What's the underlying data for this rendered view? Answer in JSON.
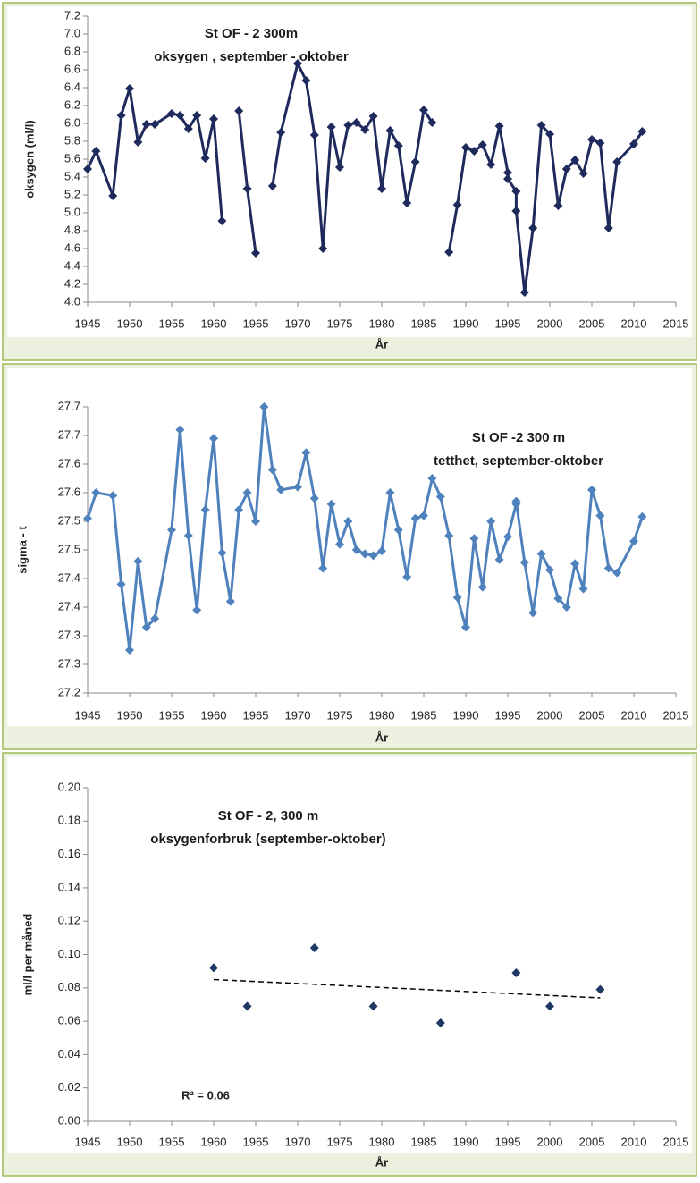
{
  "chart_data": [
    {
      "type": "line",
      "title": "St OF - 2  300m",
      "subtitle": "oksygen , september - oktober",
      "x_label": "År",
      "y_label": "oksygen (ml/l)",
      "color": "#1f2a5c",
      "x": [
        1945,
        1946,
        1948,
        1949,
        1950,
        1951,
        1952,
        1953,
        1955,
        1956,
        1957,
        1958,
        1959,
        1960,
        1961,
        1962,
        1963,
        1964,
        1965,
        1966,
        1967,
        1968,
        1970,
        1971,
        1972,
        1973,
        1974,
        1975,
        1976,
        1977,
        1978,
        1979,
        1980,
        1981,
        1982,
        1983,
        1984,
        1985,
        1986,
        1987,
        1988,
        1989,
        1990,
        1991,
        1992,
        1993,
        1994,
        1995,
        1995,
        1996,
        1996,
        1997,
        1998,
        1999,
        2000,
        2001,
        2002,
        2003,
        2004,
        2005,
        2006,
        2007,
        2008,
        2010,
        2011
      ],
      "values": [
        5.49,
        5.69,
        5.19,
        6.09,
        6.39,
        5.79,
        5.99,
        5.99,
        6.11,
        6.09,
        5.94,
        6.09,
        5.61,
        6.05,
        4.91,
        null,
        6.14,
        5.27,
        4.55,
        null,
        5.3,
        5.9,
        6.67,
        6.48,
        5.87,
        4.6,
        5.96,
        5.51,
        5.98,
        6.01,
        5.93,
        6.08,
        5.27,
        5.92,
        5.75,
        5.11,
        5.57,
        6.15,
        6.01,
        null,
        4.56,
        5.09,
        5.73,
        5.69,
        5.76,
        5.54,
        5.97,
        5.45,
        5.38,
        5.24,
        5.02,
        4.11,
        4.83,
        5.98,
        5.88,
        5.08,
        5.49,
        5.59,
        5.44,
        5.82,
        5.78,
        4.83,
        5.57,
        5.77,
        5.91
      ],
      "xlim": [
        1945,
        2015
      ],
      "xticks": [
        1945,
        1950,
        1955,
        1960,
        1965,
        1970,
        1975,
        1980,
        1985,
        1990,
        1995,
        2000,
        2005,
        2010,
        2015
      ],
      "ylim": [
        4.0,
        7.2
      ],
      "yticks": [
        {
          "value": 4,
          "label": "4.0"
        },
        4.2,
        4.4,
        4.6,
        4.8,
        {
          "value": 5,
          "label": "5.0"
        },
        5.2,
        5.4,
        5.6,
        5.8,
        {
          "value": 6,
          "label": "6.0"
        },
        6.2,
        6.4,
        6.6,
        6.8,
        {
          "value": 7,
          "label": "7.0"
        },
        7.2
      ]
    },
    {
      "type": "line",
      "title": "St OF -2  300 m",
      "subtitle": "tetthet, september-oktober",
      "x_label": "År",
      "y_label": "sigma - t",
      "color": "#4f81bd",
      "x": [
        1945,
        1946,
        1948,
        1949,
        1950,
        1951,
        1952,
        1953,
        1955,
        1956,
        1957,
        1958,
        1959,
        1960,
        1961,
        1962,
        1963,
        1964,
        1965,
        1966,
        1967,
        1968,
        1970,
        1971,
        1972,
        1973,
        1974,
        1975,
        1976,
        1977,
        1978,
        1979,
        1980,
        1981,
        1982,
        1983,
        1984,
        1985,
        1986,
        1987,
        1988,
        1989,
        1990,
        1991,
        1992,
        1993,
        1994,
        1995,
        1996,
        1996,
        1997,
        1998,
        1999,
        2000,
        2001,
        2002,
        2003,
        2004,
        2005,
        2006,
        2007,
        2008,
        2010,
        2011
      ],
      "values": [
        27.505,
        27.55,
        27.545,
        27.39,
        27.275,
        27.43,
        27.315,
        27.33,
        27.485,
        27.66,
        27.475,
        27.345,
        27.52,
        27.645,
        27.445,
        27.36,
        27.52,
        27.55,
        27.5,
        27.7,
        27.59,
        27.555,
        27.56,
        27.62,
        27.54,
        27.418,
        27.53,
        27.46,
        27.5,
        27.45,
        27.443,
        27.44,
        27.448,
        27.55,
        27.485,
        27.403,
        27.505,
        27.51,
        27.575,
        27.543,
        27.475,
        27.367,
        27.315,
        27.47,
        27.385,
        27.5,
        27.433,
        27.473,
        27.53,
        27.535,
        27.428,
        27.34,
        27.443,
        27.415,
        27.365,
        27.35,
        27.426,
        27.382,
        27.555,
        27.51,
        27.418,
        27.41,
        27.465,
        27.508
      ],
      "xlim": [
        1945,
        2015
      ],
      "xticks": [
        1945,
        1950,
        1955,
        1960,
        1965,
        1970,
        1975,
        1980,
        1985,
        1990,
        1995,
        2000,
        2005,
        2010,
        2015
      ],
      "ylim": [
        27.2,
        27.7
      ],
      "yticks": [
        27.2,
        {
          "value": 27.25,
          "label": "27.3"
        },
        27.3,
        {
          "value": 27.35,
          "label": "27.4"
        },
        27.4,
        {
          "value": 27.45,
          "label": "27.5"
        },
        27.5,
        {
          "value": 27.55,
          "label": "27.6"
        },
        27.6,
        {
          "value": 27.65,
          "label": "27.7"
        },
        27.7
      ]
    },
    {
      "type": "scatter",
      "title": "St OF - 2,  300 m",
      "subtitle": "oksygenforbruk (september-oktober)",
      "x_label": "År",
      "y_label": "ml/l per måned",
      "color": "#1f3864",
      "annotation": "R² = 0.06",
      "x": [
        1960,
        1964,
        1972,
        1979,
        1987,
        1996,
        2000,
        2006
      ],
      "values": [
        0.092,
        0.069,
        0.104,
        0.069,
        0.059,
        0.089,
        0.069,
        0.079
      ],
      "trendline": {
        "x": [
          1960,
          2006
        ],
        "values": [
          0.085,
          0.074
        ]
      },
      "xlim": [
        1945,
        2015
      ],
      "xticks": [
        1945,
        1950,
        1955,
        1960,
        1965,
        1970,
        1975,
        1980,
        1985,
        1990,
        1995,
        2000,
        2005,
        2010,
        2015
      ],
      "ylim": [
        0,
        0.2
      ],
      "yticks": [
        {
          "value": 0,
          "label": "0.00"
        },
        0.02,
        0.04,
        0.06,
        0.08,
        {
          "value": 0.1,
          "label": "0.10"
        },
        0.12,
        0.14,
        0.16,
        0.18,
        {
          "value": 0.2,
          "label": "0.20"
        }
      ]
    }
  ]
}
